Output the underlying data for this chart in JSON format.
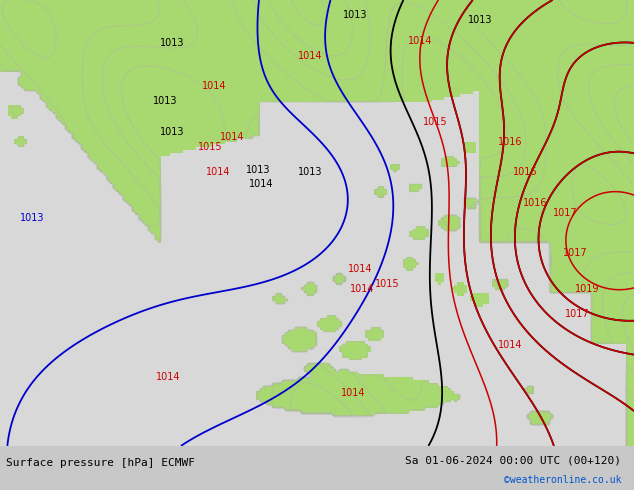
{
  "title_left": "Surface pressure [hPa] ECMWF",
  "title_right": "Sa 01-06-2024 00:00 UTC (00+120)",
  "watermark": "©weatheronline.co.uk",
  "watermark_color": "#0055cc",
  "bg_color": "#c8c8c8",
  "land_color": "#a8d870",
  "land_color2": "#90c858",
  "sea_color": "#d8d8d8",
  "topo_color": "#b0b0b0",
  "contour_black_color": "#000000",
  "contour_blue_color": "#0000cc",
  "contour_red_color": "#cc0000",
  "footer_bg": "#d0d0d0",
  "label_fontsize": 7,
  "footer_fontsize": 8,
  "fig_width": 6.34,
  "fig_height": 4.9
}
